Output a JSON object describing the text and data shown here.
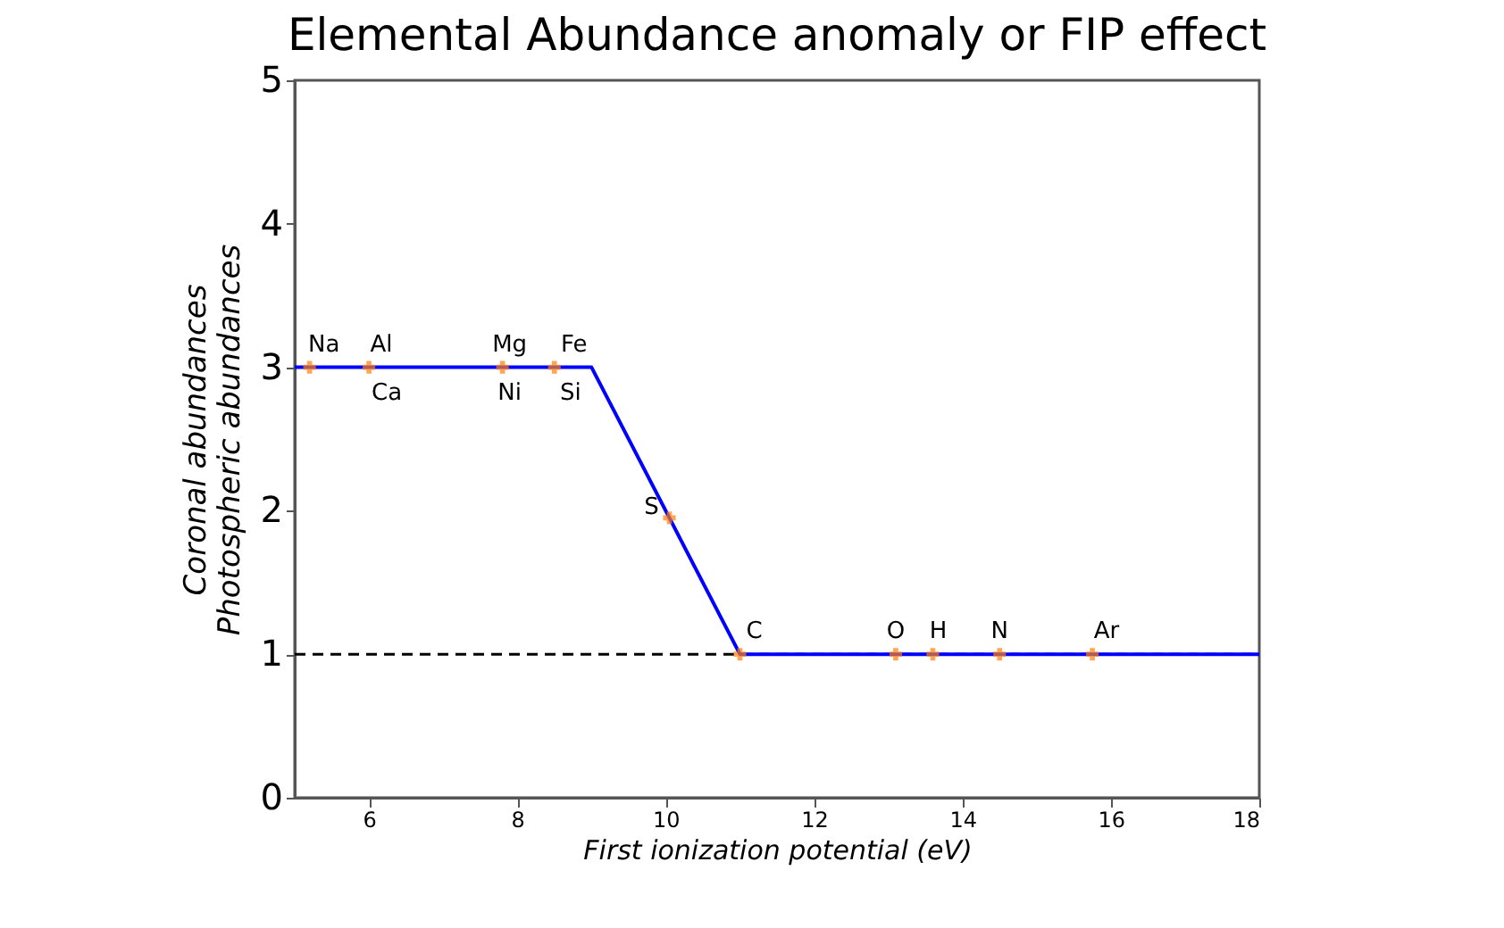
{
  "chart_data": {
    "type": "line",
    "title": "Elemental Abundance anomaly or FIP effect",
    "xlabel": "First ionization potential (eV)",
    "ylabel": "Coronal abundances\nPhotospheric abundances",
    "xlim": [
      5,
      18
    ],
    "xticks": [
      6,
      8,
      10,
      12,
      14,
      16,
      18
    ],
    "ylim": [
      0,
      5
    ],
    "yticks": [
      0,
      1,
      2,
      3,
      4,
      5
    ],
    "series": [
      {
        "color": "#0000ff",
        "x": [
          5,
          9,
          11,
          18
        ],
        "values": [
          3,
          3,
          1,
          1
        ],
        "marker": "none",
        "line_style": "solid"
      },
      {
        "type": "scatter",
        "color": "#ff7f0e",
        "marker": "cross",
        "x": [
          5.2,
          6.0,
          7.8,
          8.5,
          10.05,
          11.0,
          13.1,
          13.6,
          14.5,
          15.75
        ],
        "values": [
          3,
          3,
          3,
          3,
          1.95,
          1,
          1,
          1,
          1,
          1
        ]
      }
    ],
    "ref_lines": [
      {
        "axis": "y",
        "value": 1,
        "color": "#000000",
        "line_style": "dashed"
      }
    ],
    "annotations": [
      {
        "text": "Na",
        "x": 5.2,
        "y": 3
      },
      {
        "text": "Al",
        "x": 6.0,
        "y": 3
      },
      {
        "text": "Ca",
        "x": 6.0,
        "y": 3
      },
      {
        "text": "Mg",
        "x": 7.8,
        "y": 3
      },
      {
        "text": "Ni",
        "x": 7.8,
        "y": 3
      },
      {
        "text": "Fe",
        "x": 8.5,
        "y": 3
      },
      {
        "text": "Si",
        "x": 8.5,
        "y": 3
      },
      {
        "text": "S",
        "x": 10.05,
        "y": 1.95
      },
      {
        "text": "C",
        "x": 11.0,
        "y": 1
      },
      {
        "text": "O",
        "x": 13.1,
        "y": 1
      },
      {
        "text": "H",
        "x": 13.6,
        "y": 1
      },
      {
        "text": "N",
        "x": 14.5,
        "y": 1
      },
      {
        "text": "Ar",
        "x": 15.75,
        "y": 1
      }
    ]
  }
}
